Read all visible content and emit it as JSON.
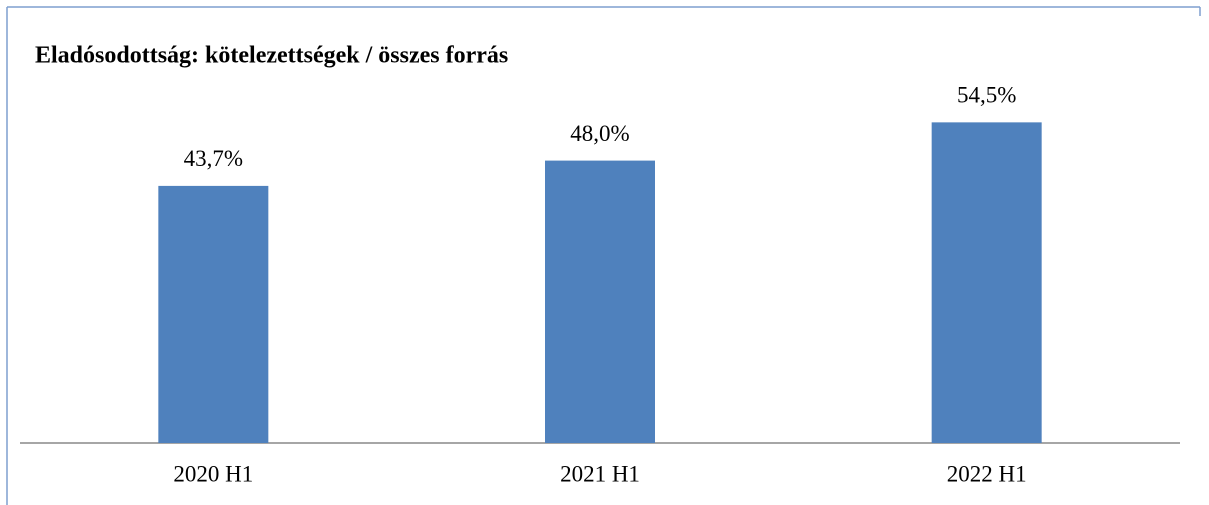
{
  "chart_data": {
    "type": "bar",
    "title": "Eladósodottság: kötelezettségek / összes forrás",
    "categories": [
      "2020 H1",
      "2021 H1",
      "2022 H1"
    ],
    "values": [
      43.7,
      48.0,
      54.5
    ],
    "value_labels": [
      "43,7%",
      "48,0%",
      "54,5%"
    ],
    "color": "#4f81bd",
    "ylim": [
      0,
      60
    ]
  }
}
